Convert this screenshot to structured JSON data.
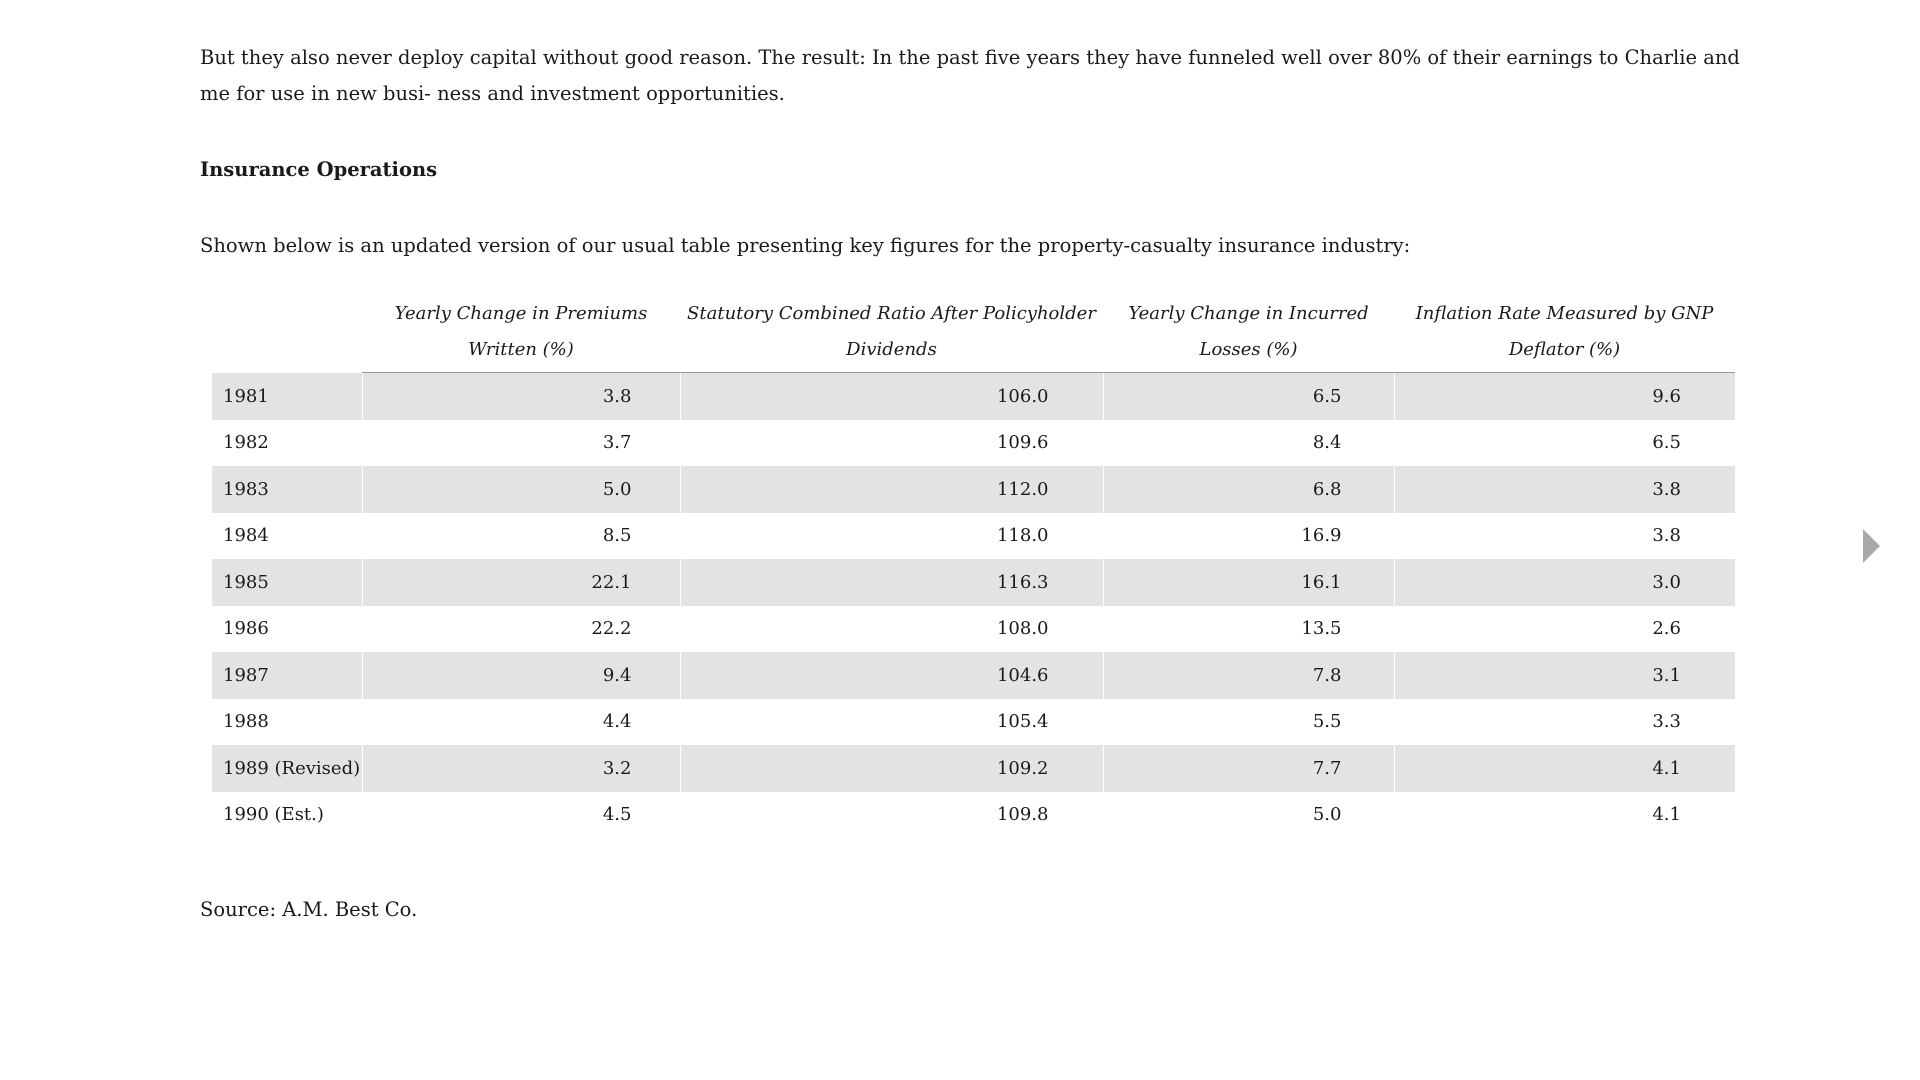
{
  "text": {
    "paragraph_1": "But they also never deploy capital without good reason. The result: In the past five years they have funneled well over 80% of their earnings to Charlie and me for use in new busi- ness and investment opportunities.",
    "section_heading": "Insurance Operations",
    "paragraph_2": "Shown below is an updated version of our usual table presenting key figures for the property-casualty insurance industry:",
    "source": "Source: A.M. Best Co."
  },
  "table": {
    "headers": [
      "",
      "Yearly Change in Premiums Written (%)",
      "Statutory Combined Ratio After Policyholder Dividends",
      "Yearly Change in Incurred Losses (%)",
      "Inflation Rate Measured by GNP Deflator (%)"
    ],
    "rows": [
      [
        "1981",
        "3.8",
        "106.0",
        "6.5",
        "9.6"
      ],
      [
        "1982",
        "3.7",
        "109.6",
        "8.4",
        "6.5"
      ],
      [
        "1983",
        "5.0",
        "112.0",
        "6.8",
        "3.8"
      ],
      [
        "1984",
        "8.5",
        "118.0",
        "16.9",
        "3.8"
      ],
      [
        "1985",
        "22.1",
        "116.3",
        "16.1",
        "3.0"
      ],
      [
        "1986",
        "22.2",
        "108.0",
        "13.5",
        "2.6"
      ],
      [
        "1987",
        "9.4",
        "104.6",
        "7.8",
        "3.1"
      ],
      [
        "1988",
        "4.4",
        "105.4",
        "5.5",
        "3.3"
      ],
      [
        "1989 (Revised)",
        "3.2",
        "109.2",
        "7.7",
        "4.1"
      ],
      [
        "1990 (Est.)",
        "4.5",
        "109.8",
        "5.0",
        "4.1"
      ]
    ],
    "shaded_row_color": "#e3e3e3"
  },
  "navigation": {
    "next_icon": "triangle-right-icon",
    "icon_color": "#a9a9a9"
  }
}
